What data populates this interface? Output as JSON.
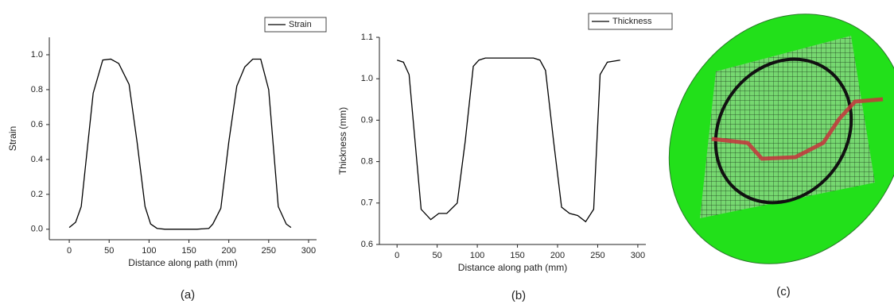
{
  "chart_data": [
    {
      "type": "line",
      "caption": "(a)",
      "x_label": "Distance along path (mm)",
      "y_label": "Strain",
      "legend": "top-right",
      "x": [
        0,
        8,
        15,
        30,
        42,
        52,
        62,
        75,
        85,
        95,
        102,
        110,
        120,
        160,
        175,
        180,
        190,
        200,
        210,
        220,
        230,
        240,
        250,
        262,
        272,
        278
      ],
      "series": [
        {
          "name": "Strain",
          "color": "#000000",
          "values": [
            0.01,
            0.04,
            0.13,
            0.78,
            0.97,
            0.975,
            0.95,
            0.83,
            0.5,
            0.13,
            0.03,
            0.005,
            0,
            0,
            0.005,
            0.03,
            0.12,
            0.5,
            0.82,
            0.93,
            0.975,
            0.975,
            0.8,
            0.13,
            0.03,
            0.01
          ]
        }
      ],
      "xlim": [
        -25,
        310
      ],
      "xticks": [
        0,
        50,
        100,
        150,
        200,
        250,
        300
      ],
      "ylim": [
        -0.06,
        1.1
      ],
      "yticks": [
        {
          "value": 0,
          "label": "0.0"
        },
        0.2,
        0.4,
        0.6,
        0.8,
        {
          "value": 1,
          "label": "1.0"
        }
      ]
    },
    {
      "type": "line",
      "caption": "(b)",
      "x_label": "Distance along path (mm)",
      "y_label": "Thickness   (mm)",
      "legend": "top-right",
      "x": [
        0,
        8,
        15,
        30,
        42,
        52,
        62,
        75,
        85,
        95,
        102,
        110,
        170,
        178,
        185,
        195,
        205,
        215,
        225,
        235,
        245,
        253,
        262,
        278
      ],
      "series": [
        {
          "name": "Thickness",
          "color": "#000000",
          "values": [
            1.045,
            1.04,
            1.01,
            0.685,
            0.66,
            0.675,
            0.675,
            0.7,
            0.85,
            1.03,
            1.045,
            1.05,
            1.05,
            1.045,
            1.02,
            0.85,
            0.69,
            0.675,
            0.67,
            0.655,
            0.685,
            1.01,
            1.04,
            1.045
          ]
        }
      ],
      "xlim": [
        -22,
        310
      ],
      "xticks": [
        0,
        50,
        100,
        150,
        200,
        250,
        300
      ],
      "ylim": [
        0.6,
        1.1
      ],
      "yticks": [
        0.6,
        0.7,
        0.8,
        0.9,
        {
          "value": 1,
          "label": "1.0"
        },
        1.1
      ]
    }
  ],
  "figure_c": {
    "caption": "(c)"
  }
}
